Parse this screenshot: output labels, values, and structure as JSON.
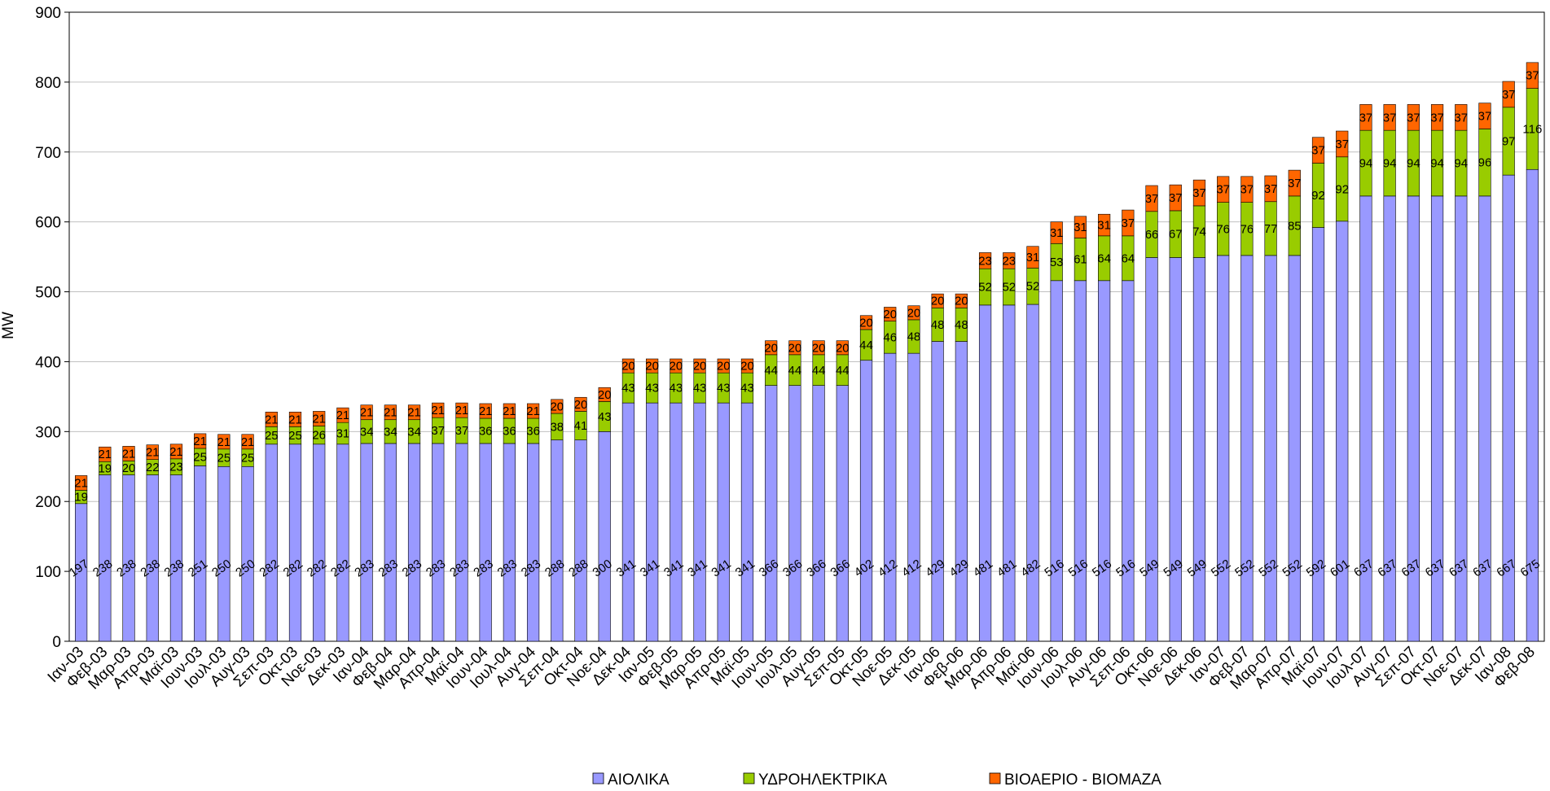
{
  "chart_data": {
    "type": "stacked_bar",
    "y_label": "MW",
    "categories": [
      "Ιαν-03",
      "Φεβ-03",
      "Μαρ-03",
      "Απρ-03",
      "Μαϊ-03",
      "Ιουν-03",
      "Ιουλ-03",
      "Αυγ-03",
      "Σεπ-03",
      "Οκτ-03",
      "Νοε-03",
      "Δεκ-03",
      "Ιαν-04",
      "Φεβ-04",
      "Μαρ-04",
      "Απρ-04",
      "Μαϊ-04",
      "Ιουν-04",
      "Ιουλ-04",
      "Αυγ-04",
      "Σεπ-04",
      "Οκτ-04",
      "Νοε-04",
      "Δεκ-04",
      "Ιαν-05",
      "Φεβ-05",
      "Μαρ-05",
      "Απρ-05",
      "Μαϊ-05",
      "Ιουν-05",
      "Ιουλ-05",
      "Αυγ-05",
      "Σεπ-05",
      "Οκτ-05",
      "Νοε-05",
      "Δεκ-05",
      "Ιαν-06",
      "Φεβ-06",
      "Μαρ-06",
      "Απρ-06",
      "Μαϊ-06",
      "Ιουν-06",
      "Ιουλ-06",
      "Αυγ-06",
      "Σεπ-06",
      "Οκτ-06",
      "Νοε-06",
      "Δεκ-06",
      "Ιαν-07",
      "Φεβ-07",
      "Μαρ-07",
      "Απρ-07",
      "Μαϊ-07",
      "Ιουν-07",
      "Ιουλ-07",
      "Αυγ-07",
      "Σεπ-07",
      "Οκτ-07",
      "Νοε-07",
      "Δεκ-07",
      "Ιαν-08",
      "Φεβ-08"
    ],
    "series": [
      {
        "name": "ΑΙΟΛΙΚΑ",
        "color": "#9999ff",
        "values": [
          197,
          238,
          238,
          238,
          238,
          251,
          250,
          250,
          282,
          282,
          282,
          282,
          283,
          283,
          283,
          283,
          283,
          283,
          283,
          283,
          288,
          288,
          300,
          341,
          341,
          341,
          341,
          341,
          341,
          366,
          366,
          366,
          366,
          402,
          412,
          412,
          429,
          429,
          481,
          481,
          482,
          516,
          516,
          516,
          516,
          549,
          549,
          549,
          552,
          552,
          552,
          552,
          592,
          601,
          637,
          637,
          637,
          637,
          637,
          637,
          667,
          675
        ]
      },
      {
        "name": "ΥΔΡΟΗΛΕΚΤΡΙΚΑ",
        "color": "#99cc00",
        "values": [
          19,
          19,
          20,
          22,
          23,
          25,
          25,
          25,
          25,
          25,
          26,
          31,
          34,
          34,
          34,
          37,
          37,
          36,
          36,
          36,
          38,
          41,
          43,
          43,
          43,
          43,
          43,
          43,
          43,
          44,
          44,
          44,
          44,
          44,
          46,
          48,
          48,
          48,
          52,
          52,
          52,
          53,
          61,
          64,
          64,
          66,
          67,
          74,
          76,
          76,
          77,
          85,
          92,
          92,
          94,
          94,
          94,
          94,
          94,
          96,
          97,
          116
        ]
      },
      {
        "name": "ΒΙΟΑΕΡΙΟ - ΒΙΟΜΑΖΑ",
        "color": "#ff6600",
        "values": [
          21,
          21,
          21,
          21,
          21,
          21,
          21,
          21,
          21,
          21,
          21,
          21,
          21,
          21,
          21,
          21,
          21,
          21,
          21,
          21,
          20,
          20,
          20,
          20,
          20,
          20,
          20,
          20,
          20,
          20,
          20,
          20,
          20,
          20,
          20,
          20,
          20,
          20,
          23,
          23,
          31,
          31,
          31,
          31,
          37,
          37,
          37,
          37,
          37,
          37,
          37,
          37,
          37,
          37,
          37,
          37,
          37,
          37,
          37,
          37,
          37,
          37
        ]
      }
    ],
    "ylim": [
      0,
      900
    ],
    "yticks": [
      0,
      100,
      200,
      300,
      400,
      500,
      600,
      700,
      800,
      900
    ],
    "grid": true,
    "legend": "bottom"
  }
}
